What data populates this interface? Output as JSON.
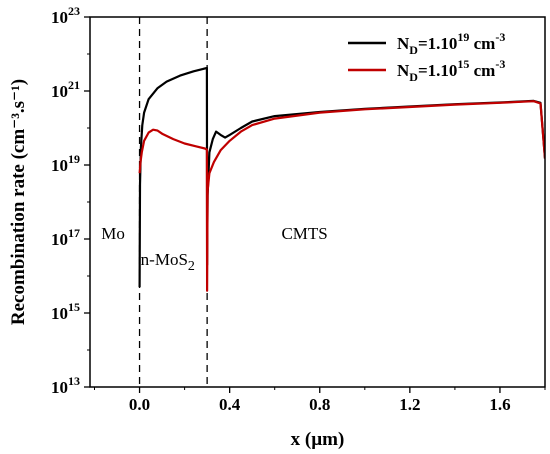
{
  "chart_data": {
    "type": "line",
    "title": "",
    "xlabel": "x (µm)",
    "ylabel": "Recombination rate (cm⁻³.s⁻¹)",
    "xlim": [
      -0.22,
      1.8
    ],
    "ylim": [
      10000000000000.0,
      1e+23
    ],
    "yscale": "log",
    "grid": false,
    "legend_position": "top-right",
    "x_ticks": [
      0.0,
      0.4,
      0.8,
      1.2,
      1.6
    ],
    "x_tick_labels": [
      "0.0",
      "0.4",
      "0.8",
      "1.2",
      "1.6"
    ],
    "y_ticks": [
      {
        "value": 10000000000000.0,
        "base": "10",
        "exp": "13"
      },
      {
        "value": 1000000000000000.0,
        "base": "10",
        "exp": "15"
      },
      {
        "value": 1e+17,
        "base": "10",
        "exp": "17"
      },
      {
        "value": 1e+19,
        "base": "10",
        "exp": "19"
      },
      {
        "value": 1e+21,
        "base": "10",
        "exp": "21"
      },
      {
        "value": 1e+23,
        "base": "10",
        "exp": "23"
      }
    ],
    "interfaces": [
      0.0,
      0.3
    ],
    "region_labels": [
      {
        "text": "Mo",
        "x": -0.17,
        "y": 1e+17
      },
      {
        "text": "n-MoS",
        "sub": "2",
        "x": 0.005,
        "y": 2e+16
      },
      {
        "text": "CMTS",
        "x": 0.63,
        "y": 1e+17
      }
    ],
    "legend": [
      {
        "prefix": "N",
        "sub": "D",
        "mid": "=1.10",
        "sup": "19",
        "unit": " cm",
        "unit_sup": "-3"
      },
      {
        "prefix": "N",
        "sub": "D",
        "mid": "=1.10",
        "sup": "15",
        "unit": " cm",
        "unit_sup": "-3"
      }
    ],
    "series": [
      {
        "color": "#000000",
        "x": [
          0.0,
          0.002,
          0.006,
          0.012,
          0.02,
          0.04,
          0.08,
          0.12,
          0.18,
          0.24,
          0.28,
          0.299,
          0.3,
          0.302,
          0.31,
          0.325,
          0.34,
          0.36,
          0.38,
          0.4,
          0.45,
          0.5,
          0.6,
          0.8,
          1.0,
          1.2,
          1.4,
          1.6,
          1.75,
          1.78,
          1.8
        ],
        "y": [
          5000000000000000.0,
          3e+18,
          3e+19,
          1.2e+20,
          2.6e+20,
          6e+20,
          1.2e+21,
          1.8e+21,
          2.6e+21,
          3.4e+21,
          3.9e+21,
          4.2e+21,
          2e+16,
          1.5e+18,
          2.2e+19,
          5e+19,
          8e+19,
          6.5e+19,
          5.5e+19,
          6.5e+19,
          1e+20,
          1.5e+20,
          2.1e+20,
          2.7e+20,
          3.3e+20,
          3.8e+20,
          4.4e+20,
          4.9e+20,
          5.4e+20,
          4.8e+20,
          1.5e+19
        ]
      },
      {
        "color": "#c00000",
        "x": [
          0.0,
          0.004,
          0.01,
          0.02,
          0.04,
          0.06,
          0.08,
          0.1,
          0.15,
          0.2,
          0.25,
          0.29,
          0.299,
          0.3,
          0.302,
          0.31,
          0.33,
          0.36,
          0.4,
          0.45,
          0.5,
          0.6,
          0.8,
          1.0,
          1.2,
          1.4,
          1.6,
          1.75,
          1.78,
          1.8
        ],
        "y": [
          6e+18,
          1.2e+19,
          2.2e+19,
          4.5e+19,
          7.5e+19,
          9e+19,
          8.5e+19,
          7e+19,
          5e+19,
          3.8e+19,
          3.2e+19,
          2.8e+19,
          2.6e+19,
          4000000000000000.0,
          2e+18,
          6e+18,
          1.2e+19,
          2.5e+19,
          4.5e+19,
          8e+19,
          1.2e+20,
          1.8e+20,
          2.6e+20,
          3.2e+20,
          3.7e+20,
          4.3e+20,
          4.8e+20,
          5.3e+20,
          4.6e+20,
          1.5e+19
        ]
      }
    ]
  }
}
